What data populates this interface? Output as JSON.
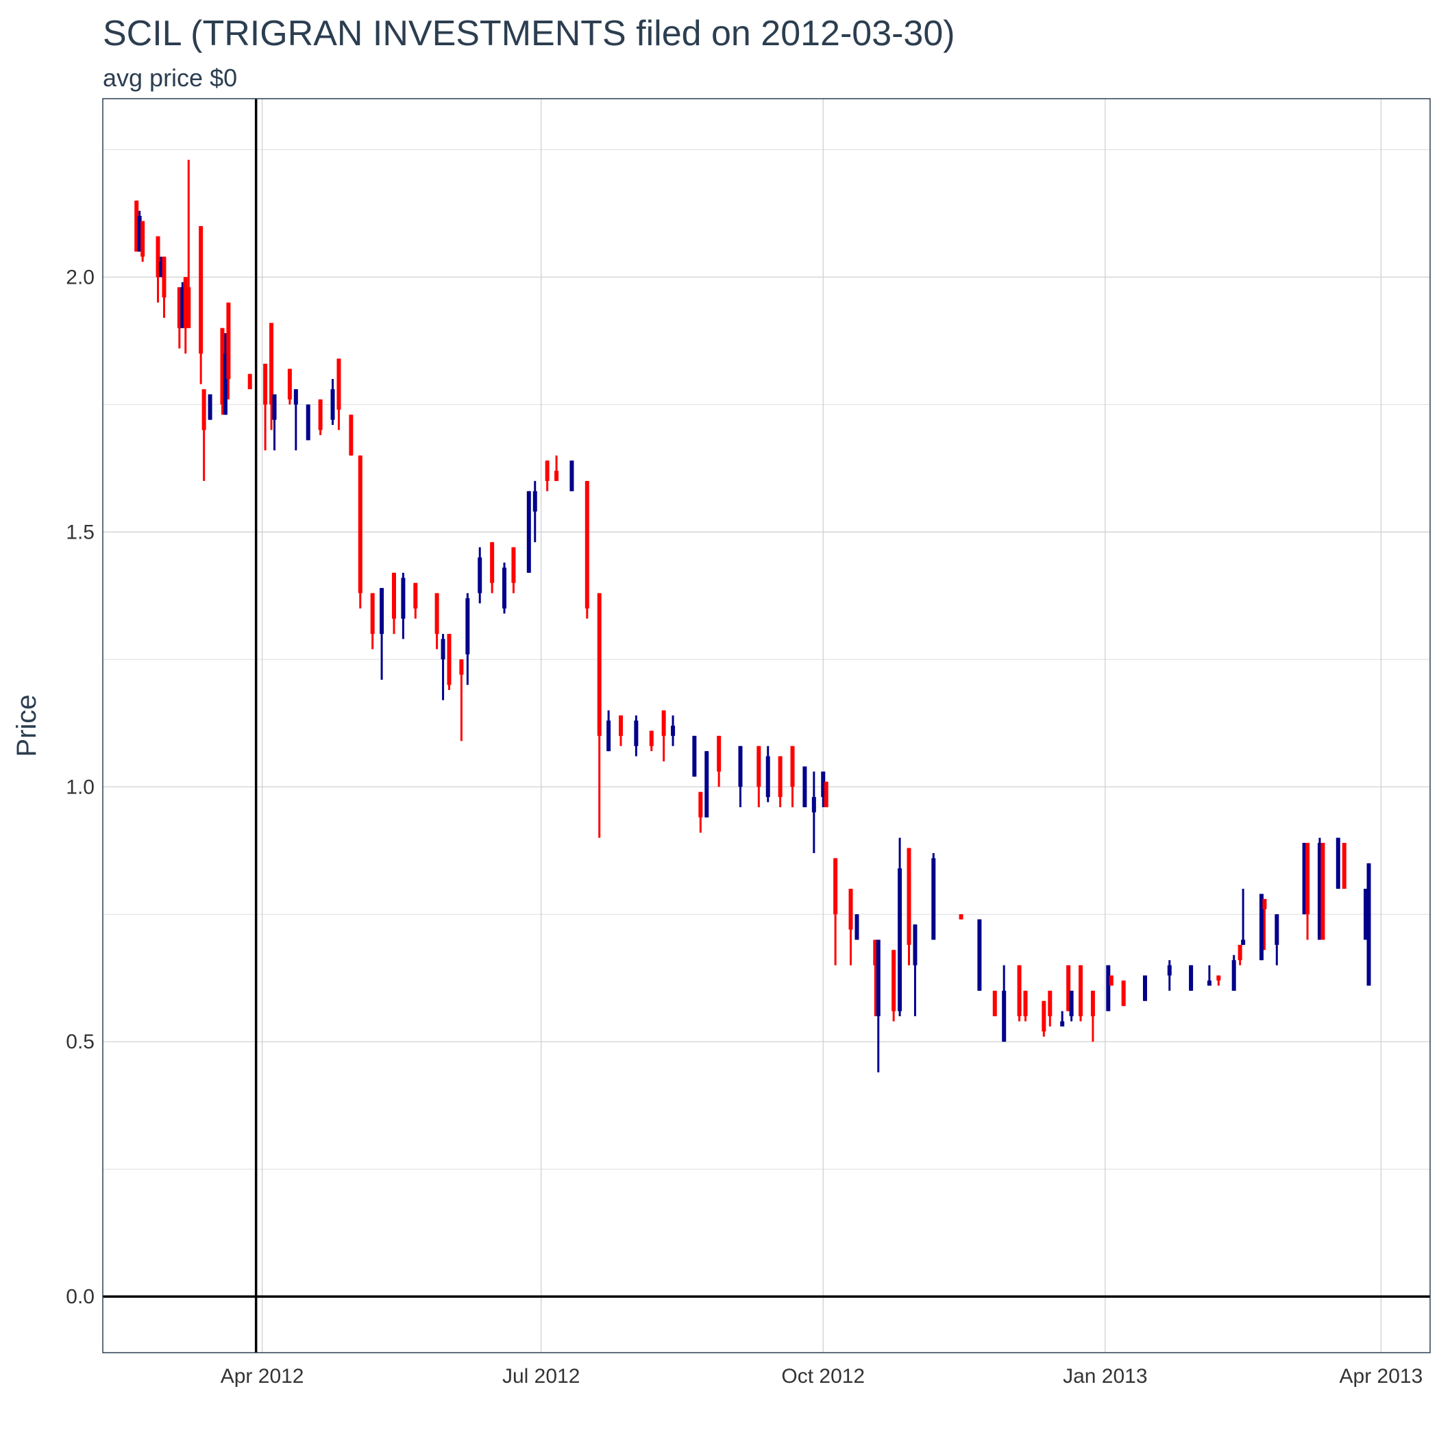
{
  "chart_data": {
    "type": "candlestick",
    "title": "SCIL (TRIGRAN INVESTMENTS filed on 2012-03-30)",
    "subtitle": "avg price $0",
    "y_label": "Price",
    "up_color": "#00008b",
    "down_color": "#ff0000",
    "grid": true,
    "vline": "2012-03-30",
    "hline": 0,
    "xlim": [
      "2012-02-09",
      "2013-04-17"
    ],
    "xticks": [
      {
        "value": "2012-04-01",
        "label": "Apr 2012"
      },
      {
        "value": "2012-07-01",
        "label": "Jul 2012"
      },
      {
        "value": "2012-10-01",
        "label": "Oct 2012"
      },
      {
        "value": "2013-01-01",
        "label": "Jan 2013"
      },
      {
        "value": "2013-04-01",
        "label": "Apr 2013"
      }
    ],
    "ylim": [
      -0.11,
      2.35
    ],
    "yticks": [
      {
        "value": 0,
        "label": "0.0"
      },
      0.5,
      {
        "value": 1,
        "label": "1.0"
      },
      1.5,
      {
        "value": 2,
        "label": "2.0"
      }
    ],
    "minor_yticks": [
      0.25,
      0.75,
      1.25,
      1.75,
      2.25
    ],
    "x": [
      "2012-02-20",
      "2012-02-21",
      "2012-02-22",
      "2012-02-27",
      "2012-02-28",
      "2012-02-29",
      "2012-03-05",
      "2012-03-06",
      "2012-03-07",
      "2012-03-08",
      "2012-03-12",
      "2012-03-13",
      "2012-03-15",
      "2012-03-19",
      "2012-03-20",
      "2012-03-21",
      "2012-03-28",
      "2012-04-02",
      "2012-04-04",
      "2012-04-05",
      "2012-04-10",
      "2012-04-12",
      "2012-04-16",
      "2012-04-20",
      "2012-04-24",
      "2012-04-26",
      "2012-04-30",
      "2012-05-03",
      "2012-05-07",
      "2012-05-10",
      "2012-05-14",
      "2012-05-17",
      "2012-05-21",
      "2012-05-28",
      "2012-05-30",
      "2012-06-01",
      "2012-06-05",
      "2012-06-07",
      "2012-06-11",
      "2012-06-15",
      "2012-06-19",
      "2012-06-22",
      "2012-06-27",
      "2012-06-29",
      "2012-07-03",
      "2012-07-06",
      "2012-07-11",
      "2012-07-16",
      "2012-07-20",
      "2012-07-23",
      "2012-07-27",
      "2012-08-01",
      "2012-08-06",
      "2012-08-10",
      "2012-08-13",
      "2012-08-20",
      "2012-08-22",
      "2012-08-24",
      "2012-08-28",
      "2012-09-04",
      "2012-09-10",
      "2012-09-13",
      "2012-09-17",
      "2012-09-21",
      "2012-09-25",
      "2012-09-28",
      "2012-10-01",
      "2012-10-02",
      "2012-10-05",
      "2012-10-10",
      "2012-10-12",
      "2012-10-18",
      "2012-10-19",
      "2012-10-24",
      "2012-10-26",
      "2012-10-29",
      "2012-10-31",
      "2012-11-06",
      "2012-11-15",
      "2012-11-21",
      "2012-11-26",
      "2012-11-29",
      "2012-12-04",
      "2012-12-06",
      "2012-12-12",
      "2012-12-14",
      "2012-12-18",
      "2012-12-20",
      "2012-12-21",
      "2012-12-24",
      "2012-12-28",
      "2013-01-02",
      "2013-01-03",
      "2013-01-07",
      "2013-01-14",
      "2013-01-22",
      "2013-01-29",
      "2013-02-04",
      "2013-02-07",
      "2013-02-12",
      "2013-02-14",
      "2013-02-15",
      "2013-02-21",
      "2013-02-22",
      "2013-02-26",
      "2013-03-07",
      "2013-03-08",
      "2013-03-12",
      "2013-03-13",
      "2013-03-18",
      "2013-03-20",
      "2013-03-27",
      "2013-03-28"
    ],
    "open": [
      2.15,
      2.05,
      2.11,
      2.08,
      2.0,
      2.04,
      1.98,
      1.9,
      2.0,
      1.98,
      2.1,
      1.78,
      1.72,
      1.9,
      1.73,
      1.95,
      1.81,
      1.83,
      1.91,
      1.72,
      1.82,
      1.75,
      1.68,
      1.76,
      1.72,
      1.84,
      1.73,
      1.65,
      1.38,
      1.3,
      1.42,
      1.33,
      1.4,
      1.38,
      1.25,
      1.3,
      1.25,
      1.26,
      1.38,
      1.48,
      1.35,
      1.47,
      1.42,
      1.54,
      1.64,
      1.62,
      1.58,
      1.6,
      1.38,
      1.07,
      1.14,
      1.08,
      1.11,
      1.15,
      1.1,
      1.02,
      0.99,
      0.94,
      1.1,
      1.0,
      1.08,
      0.98,
      1.06,
      1.08,
      0.96,
      0.95,
      0.98,
      1.01,
      0.86,
      0.8,
      0.7,
      0.7,
      0.55,
      0.68,
      0.56,
      0.88,
      0.65,
      0.7,
      0.75,
      0.6,
      0.6,
      0.5,
      0.65,
      0.6,
      0.58,
      0.6,
      0.53,
      0.65,
      0.55,
      0.65,
      0.6,
      0.56,
      0.63,
      0.62,
      0.58,
      0.63,
      0.6,
      0.61,
      0.63,
      0.6,
      0.69,
      0.69,
      0.66,
      0.78,
      0.69,
      0.75,
      0.89,
      0.7,
      0.89,
      0.8,
      0.89,
      0.7,
      0.61
    ],
    "high": [
      2.15,
      2.13,
      2.11,
      2.08,
      2.04,
      2.04,
      1.98,
      1.99,
      2.0,
      2.23,
      2.1,
      1.78,
      1.77,
      1.9,
      1.89,
      1.95,
      1.81,
      1.83,
      1.91,
      1.77,
      1.82,
      1.78,
      1.75,
      1.76,
      1.8,
      1.84,
      1.73,
      1.65,
      1.38,
      1.39,
      1.42,
      1.42,
      1.4,
      1.38,
      1.3,
      1.3,
      1.25,
      1.38,
      1.47,
      1.48,
      1.44,
      1.47,
      1.58,
      1.6,
      1.64,
      1.65,
      1.64,
      1.6,
      1.38,
      1.15,
      1.14,
      1.14,
      1.11,
      1.15,
      1.14,
      1.1,
      0.99,
      1.07,
      1.1,
      1.08,
      1.08,
      1.08,
      1.06,
      1.08,
      1.04,
      1.03,
      1.03,
      1.01,
      0.86,
      0.8,
      0.75,
      0.7,
      0.7,
      0.68,
      0.9,
      0.88,
      0.73,
      0.87,
      0.75,
      0.74,
      0.6,
      0.65,
      0.65,
      0.6,
      0.58,
      0.6,
      0.56,
      0.65,
      0.6,
      0.65,
      0.6,
      0.65,
      0.63,
      0.62,
      0.63,
      0.66,
      0.65,
      0.65,
      0.63,
      0.67,
      0.69,
      0.8,
      0.79,
      0.78,
      0.75,
      0.89,
      0.89,
      0.9,
      0.89,
      0.9,
      0.89,
      0.8,
      0.85
    ],
    "low": [
      2.05,
      2.05,
      2.03,
      1.95,
      2.0,
      1.92,
      1.86,
      1.9,
      1.85,
      1.9,
      1.79,
      1.6,
      1.72,
      1.73,
      1.73,
      1.76,
      1.78,
      1.66,
      1.7,
      1.66,
      1.75,
      1.66,
      1.68,
      1.69,
      1.71,
      1.7,
      1.65,
      1.35,
      1.27,
      1.21,
      1.3,
      1.29,
      1.33,
      1.27,
      1.17,
      1.19,
      1.09,
      1.2,
      1.36,
      1.38,
      1.34,
      1.38,
      1.42,
      1.48,
      1.58,
      1.6,
      1.58,
      1.33,
      0.9,
      1.07,
      1.08,
      1.06,
      1.07,
      1.05,
      1.08,
      1.02,
      0.91,
      0.94,
      1.0,
      0.96,
      0.96,
      0.97,
      0.96,
      0.96,
      0.96,
      0.87,
      0.96,
      0.96,
      0.65,
      0.65,
      0.7,
      0.55,
      0.44,
      0.54,
      0.55,
      0.65,
      0.55,
      0.7,
      0.74,
      0.6,
      0.55,
      0.5,
      0.54,
      0.54,
      0.51,
      0.53,
      0.53,
      0.56,
      0.54,
      0.54,
      0.5,
      0.56,
      0.61,
      0.57,
      0.58,
      0.6,
      0.6,
      0.61,
      0.61,
      0.6,
      0.65,
      0.69,
      0.66,
      0.68,
      0.65,
      0.75,
      0.7,
      0.7,
      0.7,
      0.8,
      0.8,
      0.7,
      0.61
    ],
    "close": [
      2.05,
      2.12,
      2.04,
      2.0,
      2.03,
      1.96,
      1.9,
      1.98,
      1.9,
      1.9,
      1.85,
      1.7,
      1.77,
      1.75,
      1.85,
      1.8,
      1.78,
      1.75,
      1.75,
      1.77,
      1.76,
      1.78,
      1.75,
      1.7,
      1.78,
      1.74,
      1.65,
      1.38,
      1.3,
      1.39,
      1.33,
      1.41,
      1.35,
      1.3,
      1.29,
      1.2,
      1.22,
      1.37,
      1.45,
      1.4,
      1.43,
      1.4,
      1.58,
      1.58,
      1.6,
      1.6,
      1.64,
      1.35,
      1.1,
      1.13,
      1.1,
      1.13,
      1.08,
      1.1,
      1.12,
      1.1,
      0.94,
      1.07,
      1.03,
      1.08,
      1.0,
      1.06,
      0.98,
      1.0,
      1.04,
      0.98,
      1.03,
      0.96,
      0.75,
      0.72,
      0.75,
      0.65,
      0.7,
      0.56,
      0.84,
      0.69,
      0.73,
      0.86,
      0.74,
      0.74,
      0.55,
      0.6,
      0.55,
      0.55,
      0.52,
      0.55,
      0.54,
      0.56,
      0.6,
      0.55,
      0.55,
      0.65,
      0.61,
      0.57,
      0.63,
      0.65,
      0.65,
      0.62,
      0.62,
      0.66,
      0.66,
      0.7,
      0.79,
      0.76,
      0.75,
      0.89,
      0.75,
      0.89,
      0.7,
      0.9,
      0.8,
      0.8,
      0.85
    ]
  }
}
